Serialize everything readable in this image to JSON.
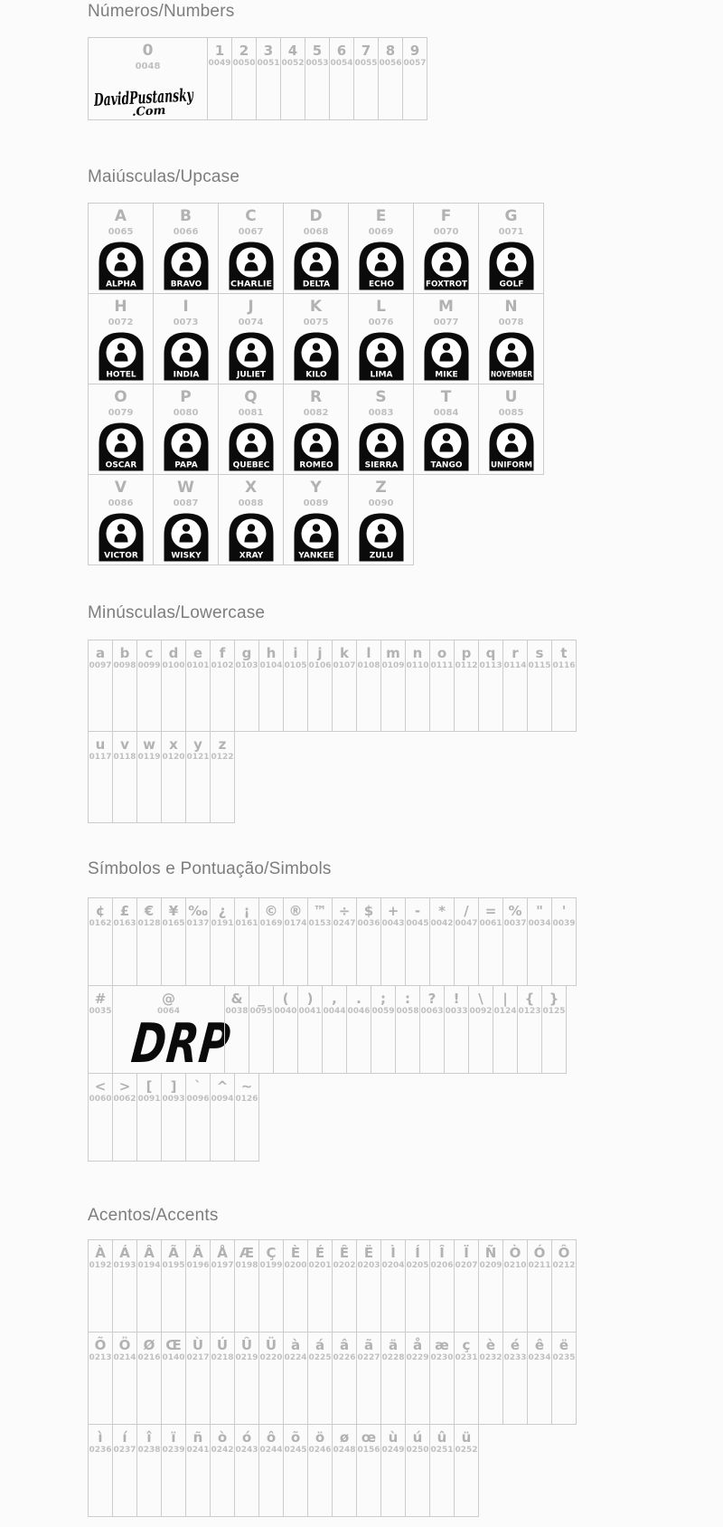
{
  "colors": {
    "page_bg": "#fbfbfb",
    "title": "#7d7d7d",
    "char": "#b2b2b2",
    "code": "#c0c0c0",
    "border": "#cccccc",
    "glyph_black": "#0b0b0b"
  },
  "glyphs": {
    "signature_line1": "DavidPustansky",
    "signature_line2": ".Com",
    "at_glyph": "DRP"
  },
  "sections": [
    {
      "id": "numbers",
      "title": "Números/Numbers",
      "rows": [
        [
          {
            "ch": "0",
            "code": "0048",
            "glyph": "signature"
          },
          {
            "ch": "1",
            "code": "0049"
          },
          {
            "ch": "2",
            "code": "0050"
          },
          {
            "ch": "3",
            "code": "0051"
          },
          {
            "ch": "4",
            "code": "0052"
          },
          {
            "ch": "5",
            "code": "0053"
          },
          {
            "ch": "6",
            "code": "0054"
          },
          {
            "ch": "7",
            "code": "0055"
          },
          {
            "ch": "8",
            "code": "0056"
          },
          {
            "ch": "9",
            "code": "0057"
          }
        ]
      ]
    },
    {
      "id": "uppercase",
      "title": "Maiúsculas/Upcase",
      "rows": [
        [
          {
            "ch": "A",
            "code": "0065",
            "label": "ALPHA"
          },
          {
            "ch": "B",
            "code": "0066",
            "label": "BRAVO"
          },
          {
            "ch": "C",
            "code": "0067",
            "label": "CHARLIE"
          },
          {
            "ch": "D",
            "code": "0068",
            "label": "DELTA"
          },
          {
            "ch": "E",
            "code": "0069",
            "label": "ECHO"
          },
          {
            "ch": "F",
            "code": "0070",
            "label": "FOXTROT"
          },
          {
            "ch": "G",
            "code": "0071",
            "label": "GOLF"
          }
        ],
        [
          {
            "ch": "H",
            "code": "0072",
            "label": "HOTEL"
          },
          {
            "ch": "I",
            "code": "0073",
            "label": "INDIA"
          },
          {
            "ch": "J",
            "code": "0074",
            "label": "JULIET"
          },
          {
            "ch": "K",
            "code": "0075",
            "label": "KILO"
          },
          {
            "ch": "L",
            "code": "0076",
            "label": "LIMA"
          },
          {
            "ch": "M",
            "code": "0077",
            "label": "MIKE"
          },
          {
            "ch": "N",
            "code": "0078",
            "label": "NOVEMBER"
          }
        ],
        [
          {
            "ch": "O",
            "code": "0079",
            "label": "OSCAR"
          },
          {
            "ch": "P",
            "code": "0080",
            "label": "PAPA"
          },
          {
            "ch": "Q",
            "code": "0081",
            "label": "QUEBEC"
          },
          {
            "ch": "R",
            "code": "0082",
            "label": "ROMEO"
          },
          {
            "ch": "S",
            "code": "0083",
            "label": "SIERRA"
          },
          {
            "ch": "T",
            "code": "0084",
            "label": "TANGO"
          },
          {
            "ch": "U",
            "code": "0085",
            "label": "UNIFORM"
          }
        ],
        [
          {
            "ch": "V",
            "code": "0086",
            "label": "VICTOR"
          },
          {
            "ch": "W",
            "code": "0087",
            "label": "WISKY"
          },
          {
            "ch": "X",
            "code": "0088",
            "label": "XRAY"
          },
          {
            "ch": "Y",
            "code": "0089",
            "label": "YANKEE"
          },
          {
            "ch": "Z",
            "code": "0090",
            "label": "ZULU"
          }
        ]
      ]
    },
    {
      "id": "lowercase",
      "title": "Minúsculas/Lowercase",
      "rows": [
        [
          {
            "ch": "a",
            "code": "0097"
          },
          {
            "ch": "b",
            "code": "0098"
          },
          {
            "ch": "c",
            "code": "0099"
          },
          {
            "ch": "d",
            "code": "0100"
          },
          {
            "ch": "e",
            "code": "0101"
          },
          {
            "ch": "f",
            "code": "0102"
          },
          {
            "ch": "g",
            "code": "0103"
          },
          {
            "ch": "h",
            "code": "0104"
          },
          {
            "ch": "i",
            "code": "0105"
          },
          {
            "ch": "j",
            "code": "0106"
          },
          {
            "ch": "k",
            "code": "0107"
          },
          {
            "ch": "l",
            "code": "0108"
          },
          {
            "ch": "m",
            "code": "0109"
          },
          {
            "ch": "n",
            "code": "0110"
          },
          {
            "ch": "o",
            "code": "0111"
          },
          {
            "ch": "p",
            "code": "0112"
          },
          {
            "ch": "q",
            "code": "0113"
          },
          {
            "ch": "r",
            "code": "0114"
          },
          {
            "ch": "s",
            "code": "0115"
          },
          {
            "ch": "t",
            "code": "0116"
          }
        ],
        [
          {
            "ch": "u",
            "code": "0117"
          },
          {
            "ch": "v",
            "code": "0118"
          },
          {
            "ch": "w",
            "code": "0119"
          },
          {
            "ch": "x",
            "code": "0120"
          },
          {
            "ch": "y",
            "code": "0121"
          },
          {
            "ch": "z",
            "code": "0122"
          }
        ]
      ]
    },
    {
      "id": "symbols",
      "title": "Símbolos e Pontuação/Simbols",
      "rows": [
        [
          {
            "ch": "¢",
            "code": "0162"
          },
          {
            "ch": "£",
            "code": "0163"
          },
          {
            "ch": "€",
            "code": "0128"
          },
          {
            "ch": "¥",
            "code": "0165"
          },
          {
            "ch": "‰",
            "code": "0137"
          },
          {
            "ch": "¿",
            "code": "0191"
          },
          {
            "ch": "¡",
            "code": "0161"
          },
          {
            "ch": "©",
            "code": "0169"
          },
          {
            "ch": "®",
            "code": "0174"
          },
          {
            "ch": "™",
            "code": "0153"
          },
          {
            "ch": "÷",
            "code": "0247"
          },
          {
            "ch": "$",
            "code": "0036"
          },
          {
            "ch": "+",
            "code": "0043"
          },
          {
            "ch": "-",
            "code": "0045"
          },
          {
            "ch": "*",
            "code": "0042"
          },
          {
            "ch": "/",
            "code": "0047"
          },
          {
            "ch": "=",
            "code": "0061"
          },
          {
            "ch": "%",
            "code": "0037"
          },
          {
            "ch": "\"",
            "code": "0034"
          },
          {
            "ch": "'",
            "code": "0039"
          }
        ],
        [
          {
            "ch": "#",
            "code": "0035"
          },
          {
            "ch": "@",
            "code": "0064",
            "glyph": "drp"
          },
          {
            "ch": "&",
            "code": "0038"
          },
          {
            "ch": "_",
            "code": "0095"
          },
          {
            "ch": "(",
            "code": "0040"
          },
          {
            "ch": ")",
            "code": "0041"
          },
          {
            "ch": ",",
            "code": "0044"
          },
          {
            "ch": ".",
            "code": "0046"
          },
          {
            "ch": ";",
            "code": "0059"
          },
          {
            "ch": ":",
            "code": "0058"
          },
          {
            "ch": "?",
            "code": "0063"
          },
          {
            "ch": "!",
            "code": "0033"
          },
          {
            "ch": "\\",
            "code": "0092"
          },
          {
            "ch": "|",
            "code": "0124"
          },
          {
            "ch": "{",
            "code": "0123"
          },
          {
            "ch": "}",
            "code": "0125"
          }
        ],
        [
          {
            "ch": "<",
            "code": "0060"
          },
          {
            "ch": ">",
            "code": "0062"
          },
          {
            "ch": "[",
            "code": "0091"
          },
          {
            "ch": "]",
            "code": "0093"
          },
          {
            "ch": "`",
            "code": "0096"
          },
          {
            "ch": "^",
            "code": "0094"
          },
          {
            "ch": "~",
            "code": "0126"
          }
        ]
      ]
    },
    {
      "id": "accents",
      "title": "Acentos/Accents",
      "rows": [
        [
          {
            "ch": "À",
            "code": "0192"
          },
          {
            "ch": "Á",
            "code": "0193"
          },
          {
            "ch": "Â",
            "code": "0194"
          },
          {
            "ch": "Ã",
            "code": "0195"
          },
          {
            "ch": "Ä",
            "code": "0196"
          },
          {
            "ch": "Å",
            "code": "0197"
          },
          {
            "ch": "Æ",
            "code": "0198"
          },
          {
            "ch": "Ç",
            "code": "0199"
          },
          {
            "ch": "È",
            "code": "0200"
          },
          {
            "ch": "É",
            "code": "0201"
          },
          {
            "ch": "Ê",
            "code": "0202"
          },
          {
            "ch": "Ë",
            "code": "0203"
          },
          {
            "ch": "Ì",
            "code": "0204"
          },
          {
            "ch": "Í",
            "code": "0205"
          },
          {
            "ch": "Î",
            "code": "0206"
          },
          {
            "ch": "Ï",
            "code": "0207"
          },
          {
            "ch": "Ñ",
            "code": "0209"
          },
          {
            "ch": "Ò",
            "code": "0210"
          },
          {
            "ch": "Ó",
            "code": "0211"
          },
          {
            "ch": "Ô",
            "code": "0212"
          }
        ],
        [
          {
            "ch": "Õ",
            "code": "0213"
          },
          {
            "ch": "Ö",
            "code": "0214"
          },
          {
            "ch": "Ø",
            "code": "0216"
          },
          {
            "ch": "Œ",
            "code": "0140"
          },
          {
            "ch": "Ù",
            "code": "0217"
          },
          {
            "ch": "Ú",
            "code": "0218"
          },
          {
            "ch": "Û",
            "code": "0219"
          },
          {
            "ch": "Ü",
            "code": "0220"
          },
          {
            "ch": "à",
            "code": "0224"
          },
          {
            "ch": "á",
            "code": "0225"
          },
          {
            "ch": "â",
            "code": "0226"
          },
          {
            "ch": "ã",
            "code": "0227"
          },
          {
            "ch": "ä",
            "code": "0228"
          },
          {
            "ch": "å",
            "code": "0229"
          },
          {
            "ch": "æ",
            "code": "0230"
          },
          {
            "ch": "ç",
            "code": "0231"
          },
          {
            "ch": "è",
            "code": "0232"
          },
          {
            "ch": "é",
            "code": "0233"
          },
          {
            "ch": "ê",
            "code": "0234"
          },
          {
            "ch": "ë",
            "code": "0235"
          }
        ],
        [
          {
            "ch": "ì",
            "code": "0236"
          },
          {
            "ch": "í",
            "code": "0237"
          },
          {
            "ch": "î",
            "code": "0238"
          },
          {
            "ch": "ï",
            "code": "0239"
          },
          {
            "ch": "ñ",
            "code": "0241"
          },
          {
            "ch": "ò",
            "code": "0242"
          },
          {
            "ch": "ó",
            "code": "0243"
          },
          {
            "ch": "ô",
            "code": "0244"
          },
          {
            "ch": "õ",
            "code": "0245"
          },
          {
            "ch": "ö",
            "code": "0246"
          },
          {
            "ch": "ø",
            "code": "0248"
          },
          {
            "ch": "œ",
            "code": "0156"
          },
          {
            "ch": "ù",
            "code": "0249"
          },
          {
            "ch": "ú",
            "code": "0250"
          },
          {
            "ch": "û",
            "code": "0251"
          },
          {
            "ch": "ü",
            "code": "0252"
          }
        ]
      ]
    }
  ]
}
